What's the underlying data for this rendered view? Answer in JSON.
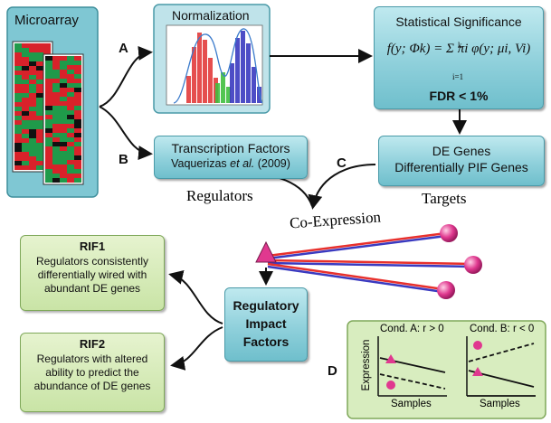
{
  "microarray": {
    "title": "Microarray"
  },
  "normalization": {
    "title": "Normalization"
  },
  "statistical": {
    "title": "Statistical Significance",
    "formula": "f(y; Φk) = Σ πi φ(y; μi, Vi)",
    "sum_upper": "k",
    "sum_lower": "i=1",
    "fdr": "FDR < 1%"
  },
  "transcription": {
    "title": "Transcription Factors",
    "citation_author": "Vaquerizas",
    "citation_etal": "et al.",
    "citation_year": "(2009)"
  },
  "de_genes": {
    "line1": "DE Genes",
    "line2": "Differentially PIF Genes"
  },
  "labels": {
    "a": "A",
    "b": "B",
    "c": "C",
    "d": "D",
    "regulators": "Regulators",
    "targets": "Targets",
    "coexpression": "Co-Expression"
  },
  "rif1": {
    "title": "RIF1",
    "body": "Regulators consistently differentially wired with abundant DE genes"
  },
  "rif2": {
    "title": "RIF2",
    "body": "Regulators with altered ability to predict the abundance of DE genes"
  },
  "rif": {
    "line1": "Regulatory",
    "line2": "Impact",
    "line3": "Factors"
  },
  "panel_d": {
    "cond_a": "Cond. A: r > 0",
    "cond_b": "Cond. B: r < 0",
    "ylabel": "Expression",
    "xlabel1": "Samples",
    "xlabel2": "Samples"
  },
  "colors": {
    "teal": "#8fd0db",
    "green": "#c9e4a6",
    "magenta": "#e0388f",
    "red": "#e8302c",
    "blue": "#3a3ac0"
  }
}
